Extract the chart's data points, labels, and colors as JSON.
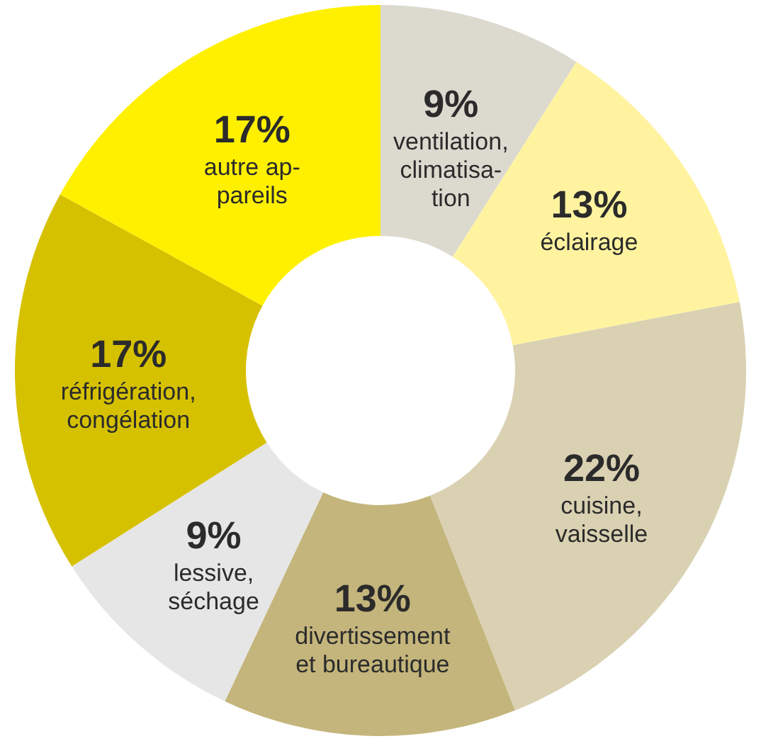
{
  "chart_data": {
    "type": "donut",
    "categories": [
      "ventilation,\nclimatisa-\ntion",
      "éclairage",
      "cuisine,\nvaisselle",
      "divertissement\net bureautique",
      "lessive,\nséchage",
      "réfrigération,\ncongélation",
      "autre ap-\npareils"
    ],
    "values": [
      9,
      13,
      22,
      13,
      9,
      17,
      17
    ],
    "value_labels": [
      "9%",
      "13%",
      "22%",
      "13%",
      "9%",
      "17%",
      "17%"
    ],
    "colors": [
      "#dcd9cf",
      "#fff3a0",
      "#d9d1b2",
      "#c4b57c",
      "#e6e6e6",
      "#d6c100",
      "#fff000"
    ]
  }
}
